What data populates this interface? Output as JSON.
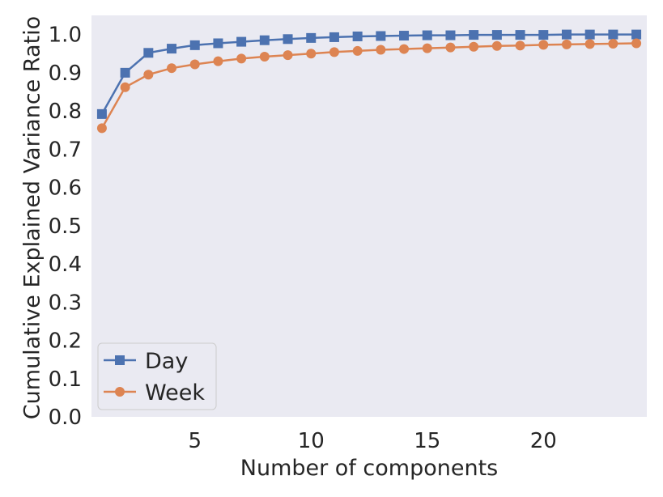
{
  "chart_data": {
    "type": "line",
    "xlabel": "Number of components",
    "ylabel": "Cumulative Explained Variance Ratio",
    "xlim": [
      0.55,
      24.45
    ],
    "ylim": [
      0.0,
      1.05
    ],
    "xticks": [
      5,
      10,
      15,
      20
    ],
    "yticks": [
      0.0,
      0.1,
      0.2,
      0.3,
      0.4,
      0.5,
      0.6,
      0.7,
      0.8,
      0.9,
      1.0
    ],
    "xtick_labels": [
      "5",
      "10",
      "15",
      "20"
    ],
    "ytick_labels": [
      "0.0",
      "0.1",
      "0.2",
      "0.3",
      "0.4",
      "0.5",
      "0.6",
      "0.7",
      "0.8",
      "0.9",
      "1.0"
    ],
    "grid": false,
    "legend": "bottom-left",
    "x": [
      1,
      2,
      3,
      4,
      5,
      6,
      7,
      8,
      9,
      10,
      11,
      12,
      13,
      14,
      15,
      16,
      17,
      18,
      19,
      20,
      21,
      22,
      23,
      24
    ],
    "series": [
      {
        "name": "Day",
        "color": "#4c72b0",
        "marker": "square",
        "values": [
          0.792,
          0.9,
          0.952,
          0.963,
          0.972,
          0.977,
          0.981,
          0.985,
          0.988,
          0.991,
          0.993,
          0.995,
          0.996,
          0.997,
          0.998,
          0.998,
          0.999,
          0.999,
          0.999,
          0.999,
          1.0,
          1.0,
          1.0,
          1.0
        ]
      },
      {
        "name": "Week",
        "color": "#dd8452",
        "marker": "circle",
        "values": [
          0.755,
          0.862,
          0.895,
          0.912,
          0.922,
          0.93,
          0.937,
          0.942,
          0.946,
          0.95,
          0.954,
          0.957,
          0.96,
          0.962,
          0.964,
          0.966,
          0.968,
          0.97,
          0.971,
          0.973,
          0.974,
          0.975,
          0.976,
          0.977
        ]
      }
    ]
  }
}
